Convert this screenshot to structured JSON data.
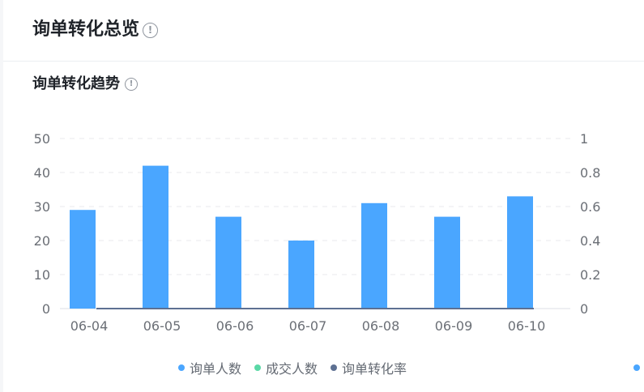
{
  "header": {
    "title": "询单转化总览",
    "info_icon": "info-icon"
  },
  "section": {
    "title": "询单转化趋势",
    "info_icon": "info-icon"
  },
  "colors": {
    "inquiry": "#4aa6ff",
    "deal": "#5ad8a6",
    "rate": "#5d7092",
    "grid": "#e8eaee",
    "axis_text": "#6b6f76",
    "edge_dot": "#4aa6ff"
  },
  "chart_data": {
    "type": "bar",
    "categories": [
      "06-04",
      "06-05",
      "06-06",
      "06-07",
      "06-08",
      "06-09",
      "06-10"
    ],
    "series": [
      {
        "name": "询单人数",
        "type": "bar",
        "axis": "left",
        "values": [
          29,
          42,
          27,
          20,
          31,
          27,
          33
        ]
      },
      {
        "name": "成交人数",
        "type": "bar",
        "axis": "left",
        "values": [
          0,
          0,
          0,
          0,
          0,
          0,
          0
        ]
      },
      {
        "name": "询单转化率",
        "type": "line",
        "axis": "right",
        "values": [
          0,
          0,
          0,
          0,
          0,
          0,
          0
        ]
      }
    ],
    "y_left": {
      "min": 0,
      "max": 50,
      "ticks": [
        "0",
        "10",
        "20",
        "30",
        "40",
        "50"
      ]
    },
    "y_right": {
      "min": 0,
      "max": 1,
      "ticks": [
        "0",
        "0.2",
        "0.4",
        "0.6",
        "0.8",
        "1"
      ]
    },
    "grid": true,
    "legend_position": "bottom"
  }
}
